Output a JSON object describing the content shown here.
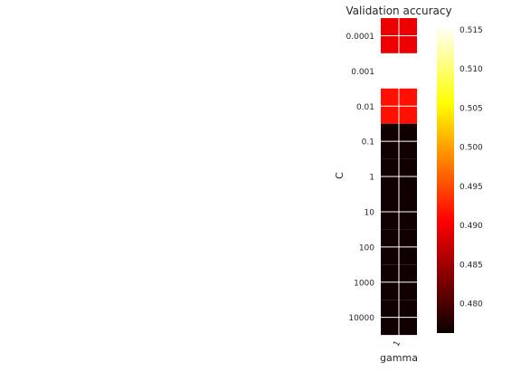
{
  "chart_data": {
    "type": "heatmap",
    "title": "Validation accuracy",
    "xlabel": "gamma",
    "ylabel": "C",
    "x_categories": [
      "1"
    ],
    "y_categories": [
      "0.0001",
      "0.001",
      "0.01",
      "0.1",
      "1",
      "10",
      "100",
      "1000",
      "10000"
    ],
    "values": [
      [
        0.4895
      ],
      [
        0.5155
      ],
      [
        0.4915
      ],
      [
        0.4765
      ],
      [
        0.4765
      ],
      [
        0.4765
      ],
      [
        0.4765
      ],
      [
        0.4765
      ],
      [
        0.4765
      ]
    ],
    "colormap": "hot",
    "vmin": 0.4762,
    "vmax": 0.5155,
    "colorbar_ticks": [
      0.48,
      0.485,
      0.49,
      0.495,
      0.5,
      0.505,
      0.51,
      0.515
    ],
    "colorbar_tick_labels": [
      "0.480",
      "0.485",
      "0.490",
      "0.495",
      "0.500",
      "0.505",
      "0.510",
      "0.515"
    ],
    "grid": true,
    "legend": "colorbar-right"
  }
}
